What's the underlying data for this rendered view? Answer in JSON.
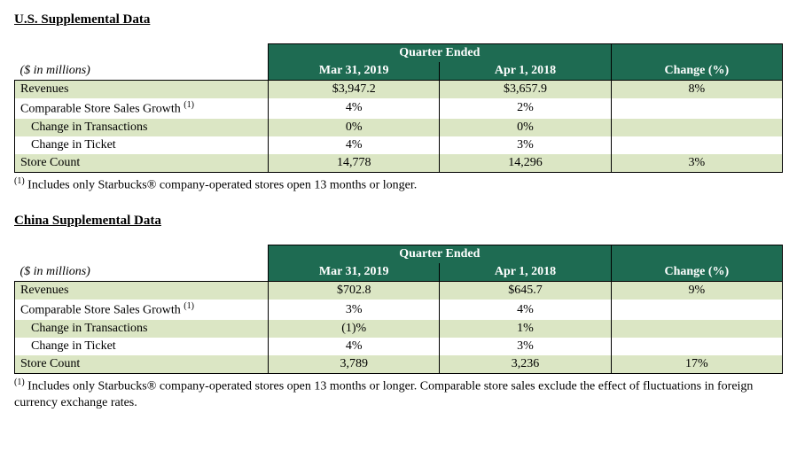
{
  "colors": {
    "header_bg": "#1e6b52",
    "header_fg": "#ffffff",
    "row_alt_bg": "#dbe6c4",
    "row_bg": "#ffffff",
    "border": "#000000"
  },
  "sections": [
    {
      "title": "U.S. Supplemental Data",
      "unit_label": "($ in millions)",
      "header_span_label": "Quarter Ended",
      "columns": [
        "Mar 31, 2019",
        "Apr 1, 2018",
        "Change (%)"
      ],
      "rows": [
        {
          "label": "Revenues",
          "indent": 0,
          "sup": "",
          "values": [
            "$3,947.2",
            "$3,657.9",
            "8%"
          ],
          "alt": true
        },
        {
          "label": "Comparable Store Sales Growth ",
          "indent": 0,
          "sup": "(1)",
          "values": [
            "4%",
            "2%",
            ""
          ],
          "alt": false
        },
        {
          "label": "Change in Transactions",
          "indent": 1,
          "sup": "",
          "values": [
            "0%",
            "0%",
            ""
          ],
          "alt": true
        },
        {
          "label": "Change in Ticket",
          "indent": 1,
          "sup": "",
          "values": [
            "4%",
            "3%",
            ""
          ],
          "alt": false
        },
        {
          "label": "Store Count",
          "indent": 0,
          "sup": "",
          "values": [
            "14,778",
            "14,296",
            "3%"
          ],
          "alt": true
        }
      ],
      "footnote_sup": "(1)",
      "footnote": " Includes only Starbucks® company-operated stores open 13 months or longer."
    },
    {
      "title": "China Supplemental Data",
      "unit_label": "($ in millions)",
      "header_span_label": "Quarter Ended",
      "columns": [
        "Mar 31, 2019",
        "Apr 1, 2018",
        "Change (%)"
      ],
      "rows": [
        {
          "label": "Revenues",
          "indent": 0,
          "sup": "",
          "values": [
            "$702.8",
            "$645.7",
            "9%"
          ],
          "alt": true
        },
        {
          "label": "Comparable Store Sales Growth ",
          "indent": 0,
          "sup": "(1)",
          "values": [
            "3%",
            "4%",
            ""
          ],
          "alt": false
        },
        {
          "label": "Change in Transactions",
          "indent": 1,
          "sup": "",
          "values": [
            "(1)%",
            "1%",
            ""
          ],
          "alt": true
        },
        {
          "label": "Change in Ticket",
          "indent": 1,
          "sup": "",
          "values": [
            "4%",
            "3%",
            ""
          ],
          "alt": false
        },
        {
          "label": "Store Count",
          "indent": 0,
          "sup": "",
          "values": [
            "3,789",
            "3,236",
            "17%"
          ],
          "alt": true
        }
      ],
      "footnote_sup": "(1)",
      "footnote": " Includes only Starbucks® company-operated stores open 13 months or longer. Comparable store sales exclude the effect of fluctuations in foreign currency exchange rates."
    }
  ]
}
